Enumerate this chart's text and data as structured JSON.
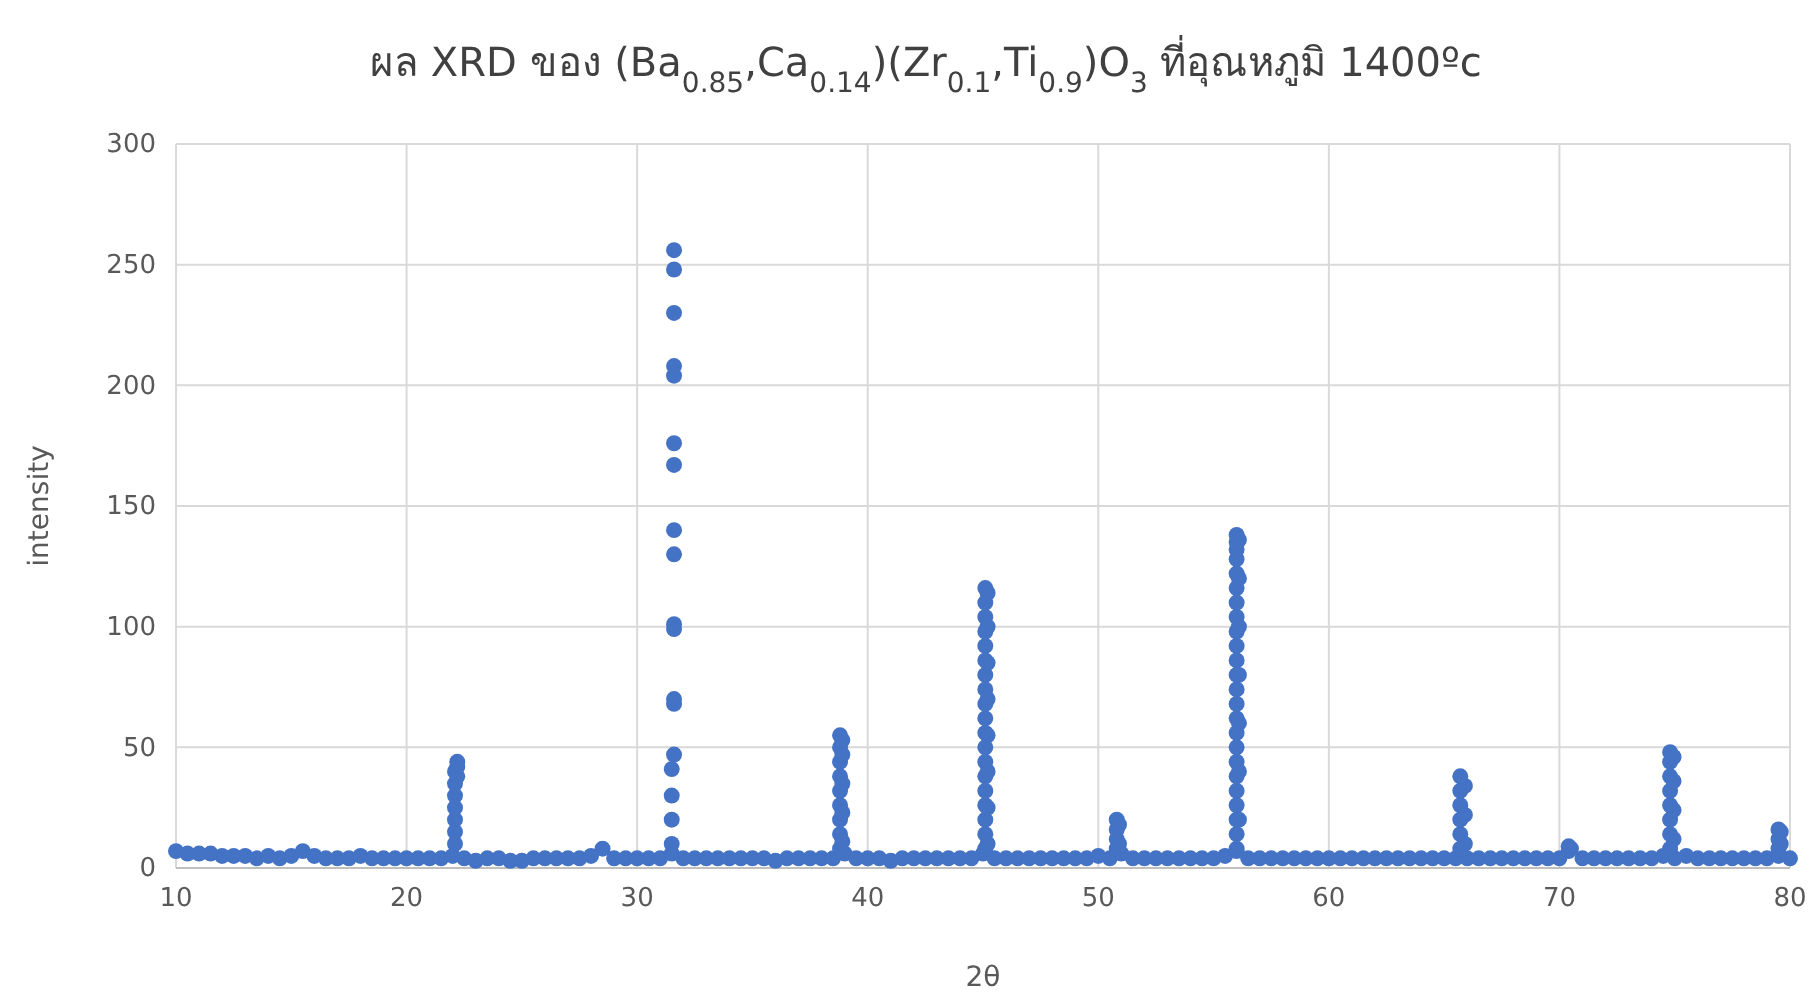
{
  "chart_data": {
    "type": "scatter",
    "title": "ผล XRD ของ (Ba$_{0.85}$,Ca$_{0.14}$)(Zr$_{0.1}$,Ti$_{0.9}$)O$_{3}$ ที่อุณหภูมิ 1400ºc",
    "xlabel": "2θ",
    "ylabel": "intensity",
    "xlim": [
      10,
      80
    ],
    "xticks": [
      10,
      20,
      30,
      40,
      50,
      60,
      70,
      80
    ],
    "ylim": [
      0,
      300
    ],
    "yticks": [
      0,
      50,
      100,
      150,
      200,
      250,
      300
    ],
    "grid": true,
    "marker": "circle",
    "series": [
      {
        "color": "#4472c4",
        "x": [
          10,
          10.5,
          11,
          11.5,
          12,
          12.5,
          13,
          13.5,
          14,
          14.5,
          15,
          15.5,
          16,
          16.5,
          17,
          17.5,
          18,
          18.5,
          19,
          19.5,
          20,
          20.5,
          21,
          21.5,
          22,
          22.5,
          23,
          23.5,
          24,
          24.5,
          25,
          25.5,
          26,
          26.5,
          27,
          27.5,
          28,
          28.5,
          29,
          29.5,
          30,
          30.5,
          31,
          31.5,
          32,
          32.5,
          33,
          33.5,
          34,
          34.5,
          35,
          35.5,
          36,
          36.5,
          37,
          37.5,
          38,
          38.5,
          39,
          39.5,
          40,
          40.5,
          41,
          41.5,
          42,
          42.5,
          43,
          43.5,
          44,
          44.5,
          45,
          45.5,
          46,
          46.5,
          47,
          47.5,
          48,
          48.5,
          49,
          49.5,
          50,
          50.5,
          51,
          51.5,
          52,
          52.5,
          53,
          53.5,
          54,
          54.5,
          55,
          55.5,
          56,
          56.5,
          57,
          57.5,
          58,
          58.5,
          59,
          59.5,
          60,
          60.5,
          61,
          61.5,
          62,
          62.5,
          63,
          63.5,
          64,
          64.5,
          65,
          65.5,
          66,
          66.5,
          67,
          67.5,
          68,
          68.5,
          69,
          69.5,
          70,
          70.5,
          71,
          71.5,
          72,
          72.5,
          73,
          73.5,
          74,
          74.5,
          75,
          75.5,
          76,
          76.5,
          77,
          77.5,
          78,
          78.5,
          79,
          79.5,
          80,
          22.1,
          22.1,
          22.1,
          22.1,
          22.1,
          22.1,
          22.1,
          22.2,
          22.2,
          22.2,
          31.5,
          31.5,
          31.5,
          31.5,
          31.6,
          31.6,
          31.6,
          31.6,
          31.6,
          31.6,
          31.6,
          31.6,
          31.6,
          31.6,
          31.6,
          31.6,
          31.6,
          31.6,
          38.8,
          38.8,
          38.8,
          38.8,
          38.8,
          38.8,
          38.8,
          38.8,
          38.8,
          38.9,
          38.9,
          38.9,
          38.9,
          38.9,
          45.1,
          45.1,
          45.1,
          45.1,
          45.1,
          45.1,
          45.1,
          45.1,
          45.1,
          45.1,
          45.1,
          45.1,
          45.1,
          45.1,
          45.1,
          45.1,
          45.1,
          45.1,
          45.1,
          45.2,
          45.2,
          45.2,
          45.2,
          45.2,
          45.2,
          45.2,
          45.2,
          50.8,
          50.8,
          50.8,
          50.8,
          50.9,
          50.9,
          56,
          56,
          56,
          56,
          56,
          56,
          56,
          56,
          56,
          56,
          56,
          56,
          56,
          56,
          56,
          56,
          56,
          56,
          56,
          56,
          56,
          56,
          56,
          56,
          56.1,
          56.1,
          56.1,
          56.1,
          56.1,
          56.1,
          56.1,
          65.7,
          65.7,
          65.7,
          65.7,
          65.7,
          65.7,
          65.9,
          65.9,
          65.9,
          70.4,
          70.4,
          74.8,
          74.8,
          74.8,
          74.8,
          74.8,
          74.8,
          74.8,
          74.8,
          74.95,
          74.95,
          74.95,
          74.95,
          79.5,
          79.5,
          79.5,
          79.6,
          79.6
        ],
        "values": [
          7,
          6,
          6,
          6,
          5,
          5,
          5,
          4,
          5,
          4,
          5,
          7,
          5,
          4,
          4,
          4,
          5,
          4,
          4,
          4,
          4,
          4,
          4,
          4,
          5,
          4,
          3,
          4,
          4,
          3,
          3,
          4,
          4,
          4,
          4,
          4,
          5,
          8,
          4,
          4,
          4,
          4,
          4,
          6,
          4,
          4,
          4,
          4,
          4,
          4,
          4,
          4,
          3,
          4,
          4,
          4,
          4,
          4,
          6,
          4,
          4,
          4,
          3,
          4,
          4,
          4,
          4,
          4,
          4,
          4,
          6,
          4,
          4,
          4,
          4,
          4,
          4,
          4,
          4,
          4,
          5,
          4,
          6,
          4,
          4,
          4,
          4,
          4,
          4,
          4,
          4,
          5,
          7,
          4,
          4,
          4,
          4,
          4,
          4,
          4,
          4,
          4,
          4,
          4,
          4,
          4,
          4,
          4,
          4,
          4,
          4,
          4,
          4,
          4,
          4,
          4,
          4,
          4,
          4,
          4,
          4,
          8,
          4,
          4,
          4,
          4,
          4,
          4,
          4,
          5,
          4,
          5,
          4,
          4,
          4,
          4,
          4,
          4,
          4,
          5,
          4,
          10,
          15,
          20,
          25,
          30,
          35,
          40,
          44,
          42,
          38,
          10,
          20,
          30,
          41,
          47,
          68,
          70,
          99,
          101,
          130,
          140,
          167,
          176,
          204,
          208,
          230,
          248,
          256,
          8,
          14,
          20,
          26,
          32,
          38,
          44,
          50,
          55,
          11,
          23,
          35,
          47,
          53,
          8,
          14,
          20,
          26,
          32,
          38,
          44,
          50,
          56,
          62,
          68,
          74,
          80,
          86,
          92,
          98,
          104,
          110,
          116,
          10,
          25,
          40,
          55,
          70,
          85,
          100,
          114,
          8,
          12,
          16,
          20,
          10,
          18,
          8,
          14,
          20,
          26,
          32,
          38,
          44,
          50,
          56,
          62,
          68,
          74,
          80,
          86,
          92,
          98,
          104,
          110,
          116,
          122,
          128,
          132,
          135,
          138,
          20,
          40,
          60,
          80,
          100,
          120,
          136,
          8,
          14,
          20,
          26,
          32,
          38,
          10,
          22,
          34,
          7,
          9,
          8,
          14,
          20,
          26,
          32,
          38,
          44,
          48,
          12,
          24,
          36,
          46,
          8,
          12,
          16,
          10,
          15
        ]
      }
    ]
  }
}
